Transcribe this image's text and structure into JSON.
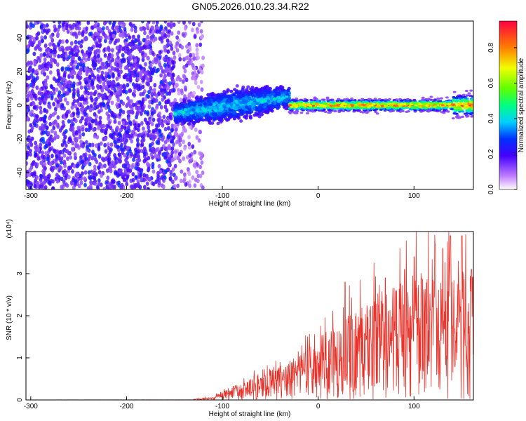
{
  "figure_title": "GN05.2026.010.23.34.R22",
  "chart_data": [
    {
      "type": "heatmap",
      "title": "",
      "xlabel": "Height of straight line (km)",
      "ylabel": "Frequency (Hz)",
      "xlim": [
        -305,
        162
      ],
      "ylim": [
        -50,
        50
      ],
      "xticks": [
        "-300",
        "-200",
        "-100",
        "0",
        "100"
      ],
      "xtick_values": [
        -300,
        -200,
        -100,
        0,
        100
      ],
      "yticks": [
        "-40",
        "-20",
        "0",
        "20",
        "40"
      ],
      "ytick_values": [
        -40,
        -20,
        0,
        20,
        40
      ],
      "colorbar": {
        "label": "Normalized spectral amplitude",
        "range": [
          0,
          0.95
        ],
        "ticks": [
          "0.0",
          "0.2",
          "0.4",
          "0.6",
          "0.8"
        ],
        "tick_values": [
          0.0,
          0.2,
          0.4,
          0.6,
          0.8
        ]
      },
      "regions": [
        {
          "x_range": [
            -305,
            -150
          ],
          "freq_range": [
            -50,
            50
          ],
          "amplitude": [
            0.1,
            0.3
          ],
          "pattern": "noise"
        },
        {
          "x_range": [
            -150,
            -120
          ],
          "freq_range": [
            -50,
            50
          ],
          "amplitude": [
            0.05,
            0.2
          ],
          "pattern": "sparse noise"
        },
        {
          "x_range": [
            -150,
            -30
          ],
          "freq_center": [
            -5,
            5
          ],
          "freq_halfwidth": [
            8,
            12
          ],
          "amplitude": [
            0.3,
            0.45
          ],
          "pattern": "signal band"
        },
        {
          "x_range": [
            -30,
            162
          ],
          "freq_center": 0,
          "freq_halfwidth": 3,
          "amplitude": [
            0.6,
            0.95
          ],
          "pattern": "narrow signal band"
        }
      ]
    },
    {
      "type": "line",
      "title": "",
      "xlabel": "Height of straight line (km)",
      "ylabel": "SNR (10 * v/v)",
      "y_multiplier": "(x10⁴)",
      "xlim": [
        -305,
        162
      ],
      "ylim": [
        0,
        4
      ],
      "xticks": [
        "-300",
        "-200",
        "-100",
        "0",
        "100"
      ],
      "xtick_values": [
        -300,
        -200,
        -100,
        0,
        100
      ],
      "yticks": [
        "0",
        "1",
        "2",
        "3"
      ],
      "ytick_values": [
        0,
        1,
        2,
        3
      ],
      "color": "#e8322a",
      "envelope": {
        "x": [
          -305,
          -130,
          -110,
          -100,
          -80,
          -60,
          -40,
          -20,
          0,
          20,
          40,
          60,
          80,
          100,
          120,
          140,
          162
        ],
        "y": [
          0.01,
          0.02,
          0.05,
          0.2,
          0.35,
          0.5,
          0.7,
          0.9,
          1.3,
          1.6,
          1.85,
          2.2,
          2.4,
          2.5,
          2.6,
          2.7,
          2.6
        ],
        "peaks": [
          {
            "x": 138,
            "y": 3.9
          },
          {
            "x": 150,
            "y": 3.9
          },
          {
            "x": 130,
            "y": 3.6
          },
          {
            "x": 122,
            "y": 3.7
          },
          {
            "x": 100,
            "y": 3.4
          },
          {
            "x": 90,
            "y": 3.1
          },
          {
            "x": 70,
            "y": 2.9
          },
          {
            "x": 28,
            "y": 2.8
          },
          {
            "x": 160,
            "y": 3.1
          }
        ]
      }
    }
  ]
}
